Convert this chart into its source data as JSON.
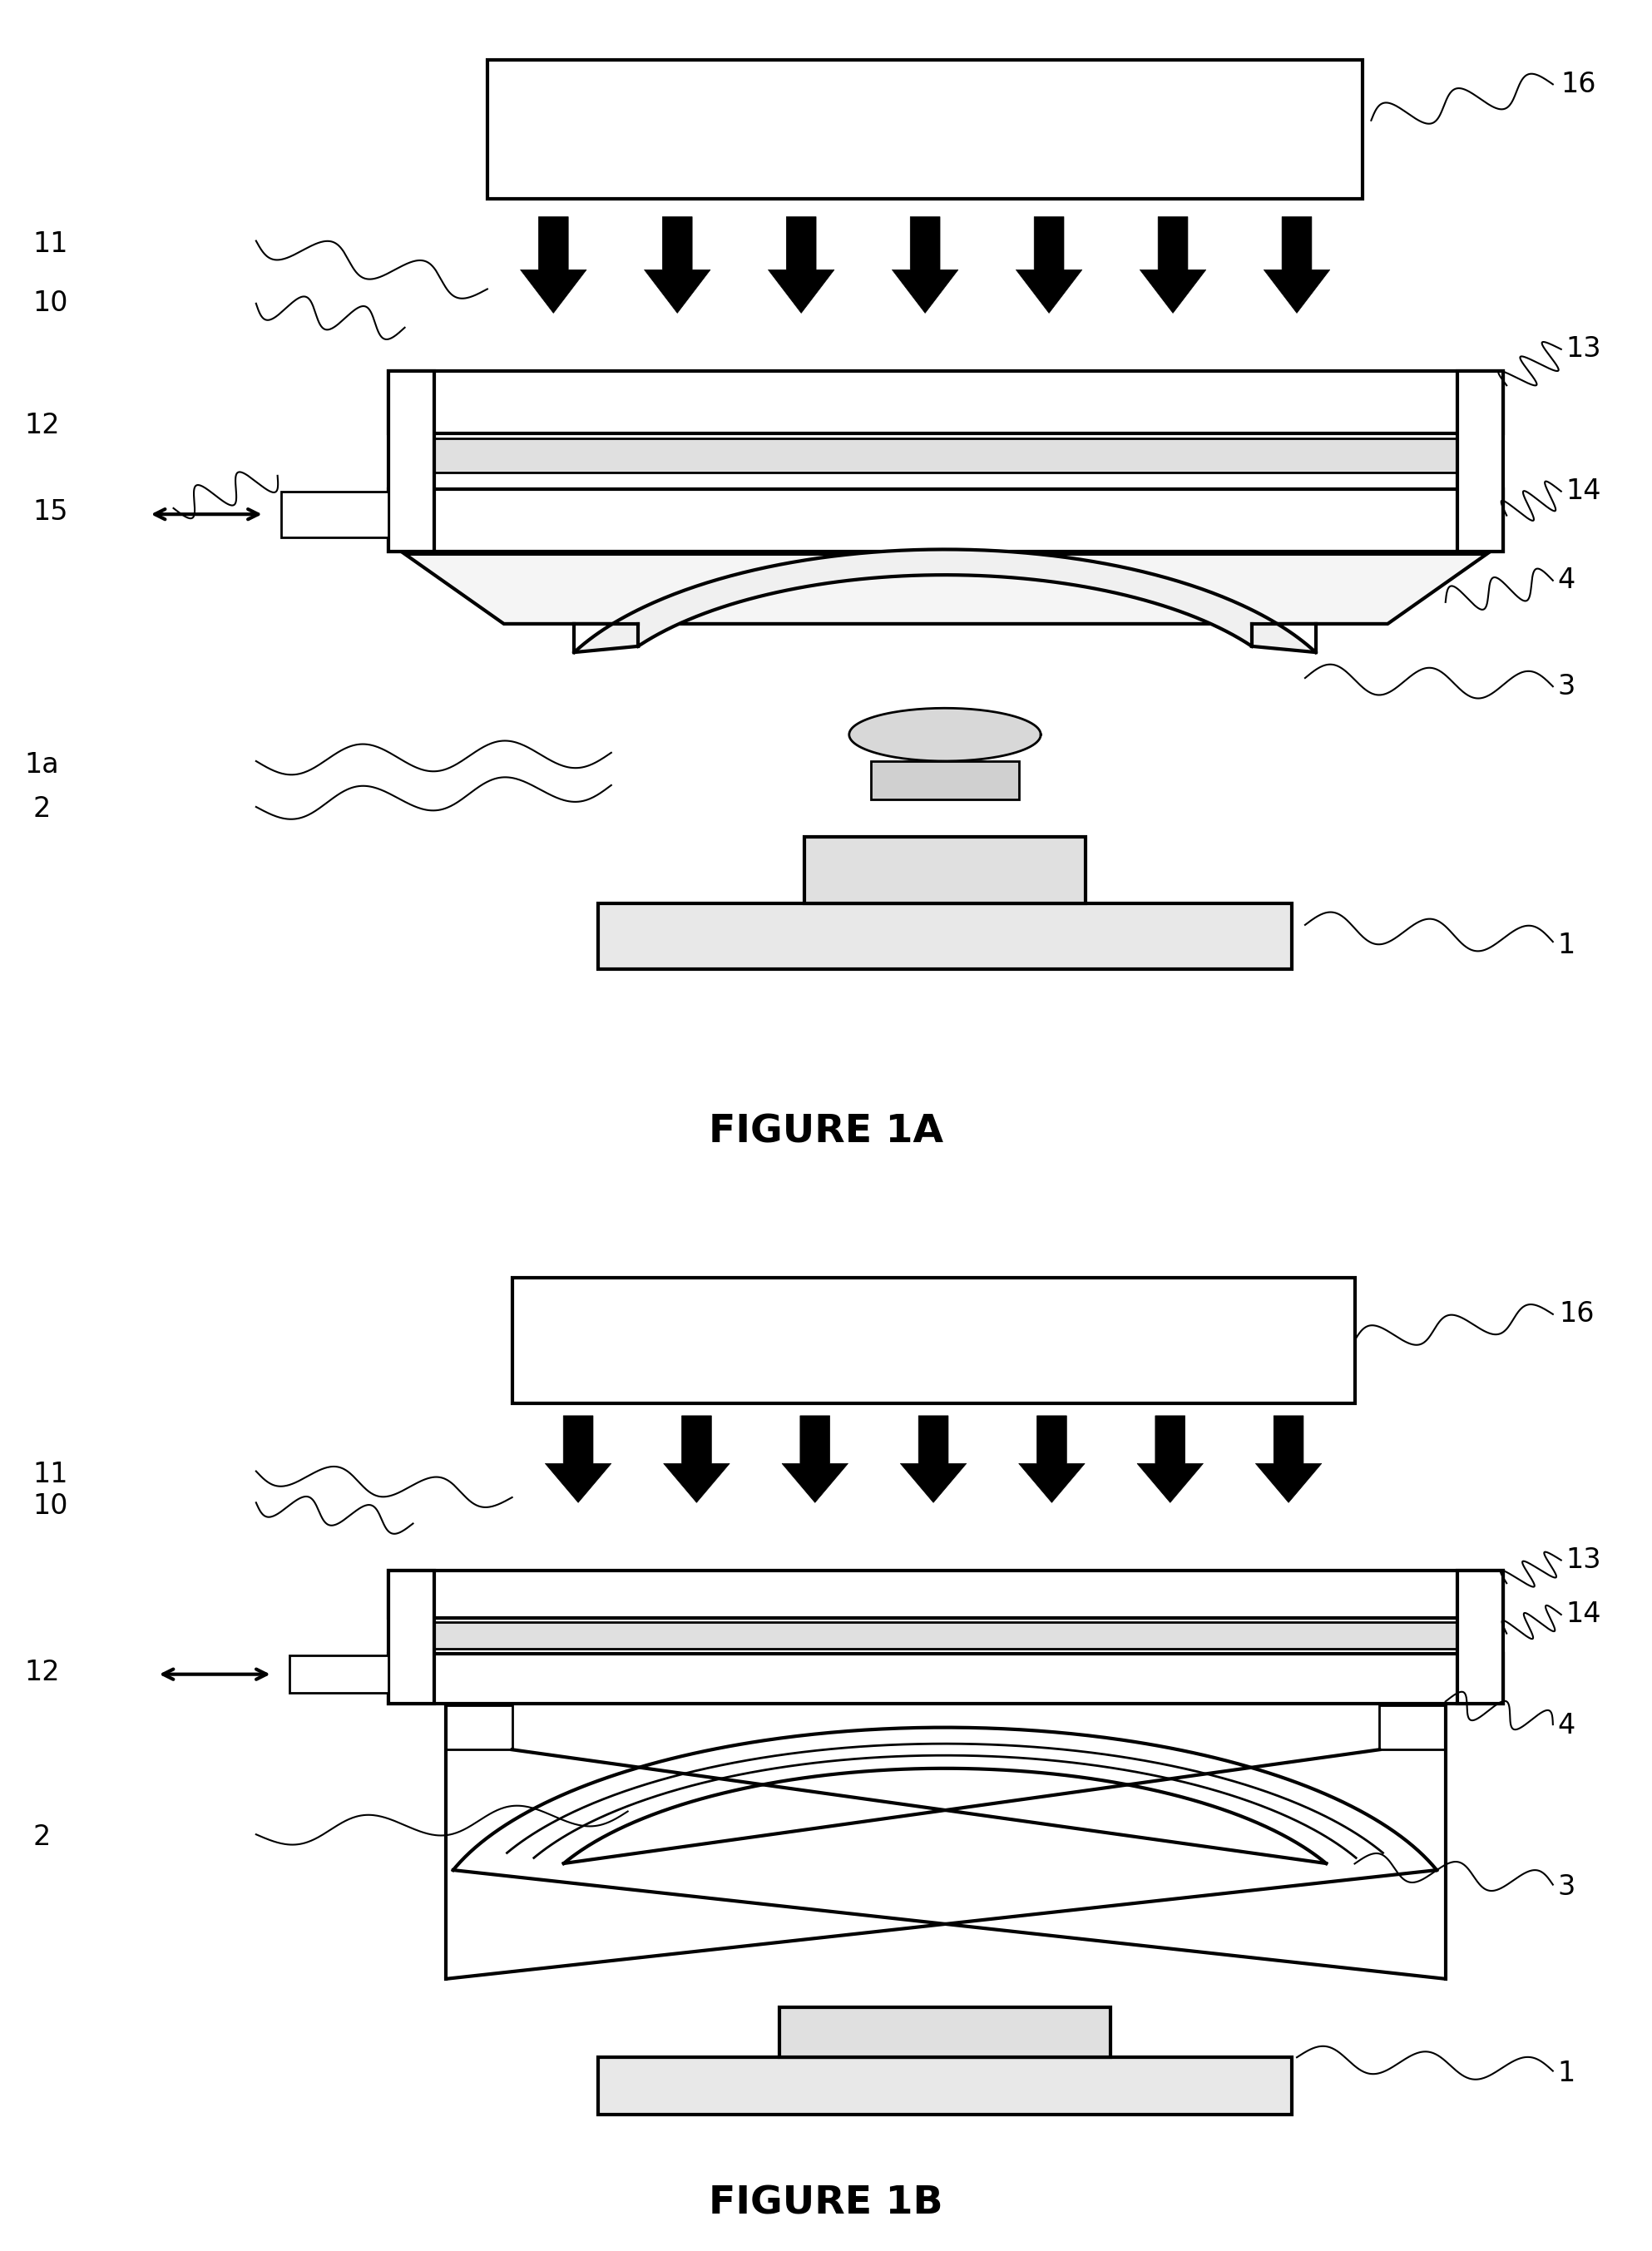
{
  "fig_width": 19.86,
  "fig_height": 27.06,
  "bg_color": "#ffffff",
  "line_color": "#000000",
  "label_fontsize": 24,
  "title_fontsize": 34,
  "fig1a_title": "FIGURE 1A",
  "fig1b_title": "FIGURE 1B"
}
